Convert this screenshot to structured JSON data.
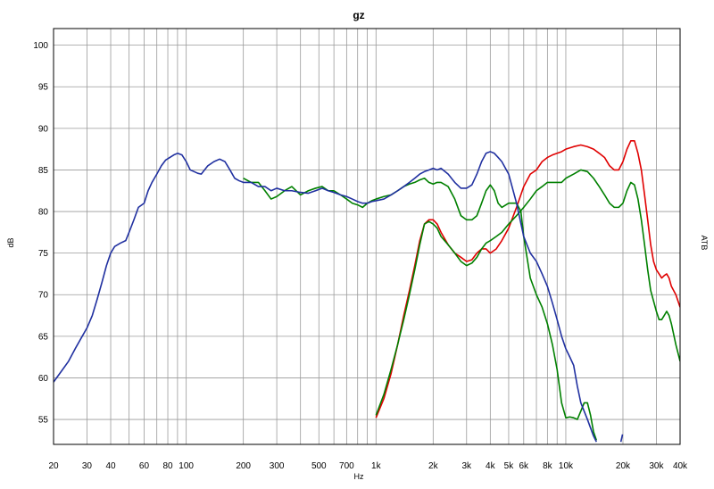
{
  "chart_data": {
    "type": "line",
    "title": "gz",
    "xlabel": "Hz",
    "ylabel": "dB",
    "y2label": "ATB",
    "x_scale": "log",
    "xlim": [
      20,
      40000
    ],
    "ylim": [
      52,
      102
    ],
    "grid": true,
    "x_ticks": [
      {
        "v": 20,
        "label": "20"
      },
      {
        "v": 30,
        "label": "30"
      },
      {
        "v": 40,
        "label": "40"
      },
      {
        "v": 60,
        "label": "60"
      },
      {
        "v": 80,
        "label": "80"
      },
      {
        "v": 100,
        "label": "100"
      },
      {
        "v": 200,
        "label": "200"
      },
      {
        "v": 300,
        "label": "300"
      },
      {
        "v": 500,
        "label": "500"
      },
      {
        "v": 700,
        "label": "700"
      },
      {
        "v": 1000,
        "label": "1k"
      },
      {
        "v": 2000,
        "label": "2k"
      },
      {
        "v": 3000,
        "label": "3k"
      },
      {
        "v": 4000,
        "label": "4k"
      },
      {
        "v": 5000,
        "label": "5k"
      },
      {
        "v": 6000,
        "label": "6k"
      },
      {
        "v": 8000,
        "label": "8k"
      },
      {
        "v": 10000,
        "label": "10k"
      },
      {
        "v": 20000,
        "label": "20k"
      },
      {
        "v": 30000,
        "label": "30k"
      },
      {
        "v": 40000,
        "label": "40k"
      }
    ],
    "x_grid": [
      20,
      30,
      40,
      50,
      60,
      70,
      80,
      90,
      100,
      200,
      300,
      400,
      500,
      600,
      700,
      800,
      900,
      1000,
      2000,
      3000,
      4000,
      5000,
      6000,
      7000,
      8000,
      9000,
      10000,
      20000,
      30000,
      40000
    ],
    "y_ticks": [
      55,
      60,
      65,
      70,
      75,
      80,
      85,
      90,
      95,
      100
    ],
    "series": [
      {
        "color": "#e00000",
        "points": [
          [
            1000,
            55.2
          ],
          [
            1100,
            57.5
          ],
          [
            1200,
            60.5
          ],
          [
            1300,
            64
          ],
          [
            1400,
            67.5
          ],
          [
            1500,
            70.5
          ],
          [
            1600,
            73.5
          ],
          [
            1700,
            76.5
          ],
          [
            1800,
            78.5
          ],
          [
            1900,
            79
          ],
          [
            2000,
            79
          ],
          [
            2100,
            78.5
          ],
          [
            2200,
            77.5
          ],
          [
            2400,
            76
          ],
          [
            2600,
            75
          ],
          [
            2800,
            74.5
          ],
          [
            3000,
            74
          ],
          [
            3200,
            74.2
          ],
          [
            3400,
            75
          ],
          [
            3600,
            75.5
          ],
          [
            3800,
            75.5
          ],
          [
            4000,
            75
          ],
          [
            4300,
            75.5
          ],
          [
            4600,
            76.5
          ],
          [
            5000,
            78
          ],
          [
            5500,
            80.5
          ],
          [
            6000,
            83
          ],
          [
            6500,
            84.5
          ],
          [
            7000,
            85
          ],
          [
            7500,
            86
          ],
          [
            8000,
            86.5
          ],
          [
            8500,
            86.8
          ],
          [
            9000,
            87
          ],
          [
            9500,
            87.2
          ],
          [
            10000,
            87.5
          ],
          [
            11000,
            87.8
          ],
          [
            12000,
            88
          ],
          [
            13000,
            87.8
          ],
          [
            14000,
            87.5
          ],
          [
            15000,
            87
          ],
          [
            16000,
            86.5
          ],
          [
            17000,
            85.5
          ],
          [
            18000,
            85
          ],
          [
            19000,
            85
          ],
          [
            20000,
            86
          ],
          [
            21000,
            87.5
          ],
          [
            22000,
            88.5
          ],
          [
            23000,
            88.5
          ],
          [
            24000,
            87
          ],
          [
            25000,
            85
          ],
          [
            26000,
            82
          ],
          [
            27000,
            79
          ],
          [
            28000,
            76
          ],
          [
            29000,
            74
          ],
          [
            30000,
            73
          ],
          [
            31000,
            72.5
          ],
          [
            32000,
            72
          ],
          [
            33000,
            72.3
          ],
          [
            34000,
            72.5
          ],
          [
            35000,
            72
          ],
          [
            36000,
            71
          ],
          [
            38000,
            70
          ],
          [
            40000,
            68.5
          ]
        ]
      },
      {
        "color": "#008000",
        "points": [
          [
            200,
            84
          ],
          [
            220,
            83.5
          ],
          [
            240,
            83.5
          ],
          [
            260,
            82.5
          ],
          [
            280,
            81.5
          ],
          [
            300,
            81.8
          ],
          [
            330,
            82.5
          ],
          [
            360,
            83
          ],
          [
            400,
            82
          ],
          [
            440,
            82.5
          ],
          [
            480,
            82.8
          ],
          [
            520,
            83
          ],
          [
            560,
            82.5
          ],
          [
            600,
            82.5
          ],
          [
            650,
            82
          ],
          [
            700,
            81.5
          ],
          [
            750,
            81
          ],
          [
            800,
            80.8
          ],
          [
            850,
            80.5
          ],
          [
            900,
            81
          ],
          [
            950,
            81.3
          ],
          [
            1000,
            81.5
          ],
          [
            1100,
            81.8
          ],
          [
            1200,
            82
          ],
          [
            1300,
            82.5
          ],
          [
            1400,
            83
          ],
          [
            1500,
            83.3
          ],
          [
            1600,
            83.5
          ],
          [
            1700,
            83.8
          ],
          [
            1800,
            84
          ],
          [
            1900,
            83.5
          ],
          [
            2000,
            83.3
          ],
          [
            2100,
            83.5
          ],
          [
            2200,
            83.5
          ],
          [
            2400,
            83
          ],
          [
            2600,
            81.5
          ],
          [
            2800,
            79.5
          ],
          [
            3000,
            79
          ],
          [
            3200,
            79
          ],
          [
            3400,
            79.5
          ],
          [
            3600,
            81
          ],
          [
            3800,
            82.5
          ],
          [
            4000,
            83.2
          ],
          [
            4200,
            82.5
          ],
          [
            4400,
            81
          ],
          [
            4600,
            80.5
          ],
          [
            5000,
            81
          ],
          [
            5500,
            81
          ],
          [
            5800,
            80
          ],
          [
            6000,
            77
          ],
          [
            6500,
            72
          ],
          [
            7000,
            70
          ],
          [
            7500,
            68.5
          ],
          [
            8000,
            66.5
          ],
          [
            8500,
            64
          ],
          [
            9000,
            61
          ],
          [
            9500,
            57
          ],
          [
            10000,
            55.2
          ],
          [
            10500,
            55.3
          ],
          [
            11000,
            55.2
          ],
          [
            11500,
            55
          ],
          [
            12000,
            56
          ],
          [
            12500,
            57
          ],
          [
            13000,
            57
          ],
          [
            13500,
            55.5
          ],
          [
            14000,
            53.5
          ],
          [
            14500,
            52.5
          ]
        ]
      },
      {
        "color": "#008000",
        "points": [
          [
            1000,
            55.5
          ],
          [
            1100,
            58
          ],
          [
            1200,
            61
          ],
          [
            1300,
            64
          ],
          [
            1400,
            67
          ],
          [
            1500,
            70
          ],
          [
            1600,
            73
          ],
          [
            1700,
            76
          ],
          [
            1800,
            78.5
          ],
          [
            1900,
            78.8
          ],
          [
            2000,
            78.5
          ],
          [
            2100,
            78
          ],
          [
            2200,
            77
          ],
          [
            2400,
            76
          ],
          [
            2600,
            75
          ],
          [
            2800,
            74
          ],
          [
            3000,
            73.5
          ],
          [
            3200,
            73.8
          ],
          [
            3400,
            74.5
          ],
          [
            3600,
            75.5
          ],
          [
            3800,
            76.2
          ],
          [
            4000,
            76.5
          ],
          [
            4300,
            77
          ],
          [
            4600,
            77.5
          ],
          [
            5000,
            78.5
          ],
          [
            5500,
            79.5
          ],
          [
            6000,
            80.5
          ],
          [
            6500,
            81.5
          ],
          [
            7000,
            82.5
          ],
          [
            7500,
            83
          ],
          [
            8000,
            83.5
          ],
          [
            8500,
            83.5
          ],
          [
            9000,
            83.5
          ],
          [
            9500,
            83.5
          ],
          [
            10000,
            84
          ],
          [
            11000,
            84.5
          ],
          [
            12000,
            85
          ],
          [
            13000,
            84.8
          ],
          [
            14000,
            84
          ],
          [
            15000,
            83
          ],
          [
            16000,
            82
          ],
          [
            17000,
            81
          ],
          [
            18000,
            80.5
          ],
          [
            19000,
            80.5
          ],
          [
            20000,
            81
          ],
          [
            21000,
            82.5
          ],
          [
            22000,
            83.5
          ],
          [
            23000,
            83.2
          ],
          [
            24000,
            81.5
          ],
          [
            25000,
            79
          ],
          [
            26000,
            76
          ],
          [
            27000,
            73
          ],
          [
            28000,
            70.5
          ],
          [
            30000,
            68
          ],
          [
            31000,
            67
          ],
          [
            32000,
            67
          ],
          [
            33000,
            67.5
          ],
          [
            34000,
            68
          ],
          [
            35000,
            67.5
          ],
          [
            36000,
            66.5
          ],
          [
            38000,
            64
          ],
          [
            40000,
            62
          ]
        ]
      },
      {
        "color": "#2030a0",
        "points": [
          [
            20,
            59.5
          ],
          [
            22,
            60.8
          ],
          [
            24,
            62
          ],
          [
            26,
            63.5
          ],
          [
            28,
            64.8
          ],
          [
            30,
            66
          ],
          [
            32,
            67.5
          ],
          [
            34,
            69.5
          ],
          [
            36,
            71.5
          ],
          [
            38,
            73.5
          ],
          [
            40,
            75
          ],
          [
            42,
            75.8
          ],
          [
            45,
            76.2
          ],
          [
            48,
            76.5
          ],
          [
            50,
            77.5
          ],
          [
            53,
            79
          ],
          [
            56,
            80.5
          ],
          [
            60,
            81
          ],
          [
            63,
            82.5
          ],
          [
            66,
            83.5
          ],
          [
            70,
            84.5
          ],
          [
            74,
            85.5
          ],
          [
            78,
            86.2
          ],
          [
            82,
            86.5
          ],
          [
            86,
            86.8
          ],
          [
            90,
            87
          ],
          [
            95,
            86.8
          ],
          [
            100,
            86
          ],
          [
            105,
            85
          ],
          [
            110,
            84.8
          ],
          [
            115,
            84.6
          ],
          [
            120,
            84.5
          ],
          [
            130,
            85.5
          ],
          [
            140,
            86
          ],
          [
            150,
            86.3
          ],
          [
            160,
            86
          ],
          [
            170,
            85
          ],
          [
            180,
            84
          ],
          [
            190,
            83.7
          ],
          [
            200,
            83.5
          ],
          [
            220,
            83.5
          ],
          [
            240,
            83
          ],
          [
            260,
            83
          ],
          [
            280,
            82.5
          ],
          [
            300,
            82.8
          ],
          [
            330,
            82.5
          ],
          [
            360,
            82.5
          ],
          [
            400,
            82.3
          ],
          [
            440,
            82.2
          ],
          [
            480,
            82.5
          ],
          [
            520,
            82.8
          ],
          [
            560,
            82.5
          ],
          [
            600,
            82.3
          ],
          [
            650,
            82
          ],
          [
            700,
            81.8
          ],
          [
            750,
            81.5
          ],
          [
            800,
            81.2
          ],
          [
            850,
            81
          ],
          [
            900,
            81
          ],
          [
            950,
            81.2
          ],
          [
            1000,
            81.3
          ],
          [
            1100,
            81.5
          ],
          [
            1200,
            82
          ],
          [
            1300,
            82.5
          ],
          [
            1400,
            83
          ],
          [
            1500,
            83.5
          ],
          [
            1600,
            84
          ],
          [
            1700,
            84.5
          ],
          [
            1800,
            84.8
          ],
          [
            1900,
            85
          ],
          [
            2000,
            85.2
          ],
          [
            2100,
            85
          ],
          [
            2200,
            85.2
          ],
          [
            2400,
            84.5
          ],
          [
            2600,
            83.5
          ],
          [
            2800,
            82.8
          ],
          [
            3000,
            82.8
          ],
          [
            3200,
            83.2
          ],
          [
            3400,
            84.5
          ],
          [
            3600,
            86
          ],
          [
            3800,
            87
          ],
          [
            4000,
            87.2
          ],
          [
            4200,
            87
          ],
          [
            4400,
            86.5
          ],
          [
            4600,
            86
          ],
          [
            5000,
            84.5
          ],
          [
            5500,
            81
          ],
          [
            6000,
            77
          ],
          [
            6500,
            75
          ],
          [
            7000,
            74
          ],
          [
            7500,
            72.5
          ],
          [
            8000,
            71
          ],
          [
            8500,
            69
          ],
          [
            9000,
            67
          ],
          [
            9500,
            65
          ],
          [
            10000,
            63.5
          ],
          [
            10500,
            62.5
          ],
          [
            11000,
            61.5
          ],
          [
            11500,
            59
          ],
          [
            12000,
            57
          ],
          [
            13000,
            55
          ],
          [
            14000,
            53
          ],
          [
            14500,
            52.3
          ]
        ]
      },
      {
        "color": "#2030a0",
        "points": [
          [
            19500,
            52.3
          ],
          [
            19900,
            53.2
          ]
        ]
      }
    ]
  }
}
